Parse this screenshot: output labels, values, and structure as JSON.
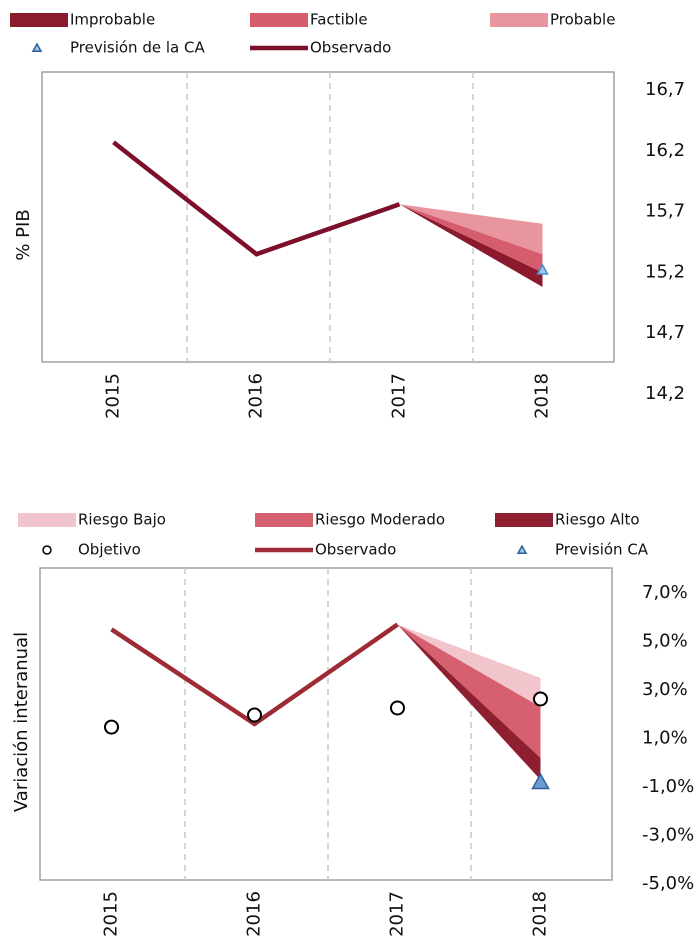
{
  "chart_data": [
    {
      "type": "fan",
      "y_label": "% PIB",
      "categories": [
        "2015",
        "2016",
        "2017",
        "2018"
      ],
      "ylim": [
        14.2,
        16.7
      ],
      "yticks": [
        {
          "value": 16.7,
          "label": "16,7"
        },
        {
          "value": 16.2,
          "label": "16,2"
        },
        {
          "value": 15.7,
          "label": "15,7"
        },
        {
          "value": 15.2,
          "label": "15,2"
        },
        {
          "value": 14.7,
          "label": "14,7"
        },
        {
          "value": 14.2,
          "label": "14,2"
        }
      ],
      "series": [
        {
          "name": "Improbable",
          "kind": "band",
          "color": "#8b1a2e",
          "low": [
            null,
            null,
            15.76,
            15.08
          ],
          "high": [
            null,
            null,
            15.76,
            15.2
          ]
        },
        {
          "name": "Factible",
          "kind": "band",
          "color": "#d65d6e",
          "low": [
            null,
            null,
            15.76,
            15.2
          ],
          "high": [
            null,
            null,
            15.76,
            15.35
          ]
        },
        {
          "name": "Probable",
          "kind": "band",
          "color": "#e8959f",
          "low": [
            null,
            null,
            15.76,
            15.35
          ],
          "high": [
            null,
            null,
            15.76,
            15.6
          ]
        },
        {
          "name": "Previsión de la CA",
          "kind": "triangle",
          "color": "#4a90c8",
          "values": [
            null,
            null,
            null,
            15.22
          ]
        },
        {
          "name": "Observado",
          "kind": "line",
          "color": "#7d0f2a",
          "values": [
            16.27,
            15.35,
            15.76,
            null
          ]
        }
      ]
    },
    {
      "type": "fan",
      "y_label": "Variación interanual",
      "categories": [
        "2015",
        "2016",
        "2017",
        "2018"
      ],
      "ylim": [
        -5,
        7
      ],
      "yticks": [
        {
          "value": 7,
          "label": "7,0%"
        },
        {
          "value": 5,
          "label": "5,0%"
        },
        {
          "value": 3,
          "label": "3,0%"
        },
        {
          "value": 1,
          "label": "1,0%"
        },
        {
          "value": -1,
          "label": "-1,0%"
        },
        {
          "value": -3,
          "label": "-3,0%"
        },
        {
          "value": -5,
          "label": "-5,0%"
        }
      ],
      "series": [
        {
          "name": "Riesgo Bajo",
          "kind": "band",
          "color": "#f2c4cb",
          "low": [
            null,
            null,
            5.7,
            2.3
          ],
          "high": [
            null,
            null,
            5.7,
            3.5
          ]
        },
        {
          "name": "Riesgo Moderado",
          "kind": "band",
          "color": "#d66070",
          "low": [
            null,
            null,
            5.7,
            0.2
          ],
          "high": [
            null,
            null,
            5.7,
            2.3
          ]
        },
        {
          "name": "Riesgo Alto",
          "kind": "band",
          "color": "#8e1f30",
          "low": [
            null,
            null,
            5.7,
            -0.7
          ],
          "high": [
            null,
            null,
            5.7,
            0.2
          ]
        },
        {
          "name": "Objetivo",
          "kind": "circle",
          "color": "#000000",
          "values": [
            1.47,
            1.97,
            2.26,
            2.63
          ]
        },
        {
          "name": "Observado",
          "kind": "line",
          "color": "#9e2a36",
          "values": [
            5.5,
            1.6,
            5.7,
            null
          ]
        },
        {
          "name": "Previsión CA",
          "kind": "triangle",
          "color": "#6c9bd1",
          "values": [
            null,
            null,
            null,
            -0.8
          ]
        }
      ]
    }
  ]
}
